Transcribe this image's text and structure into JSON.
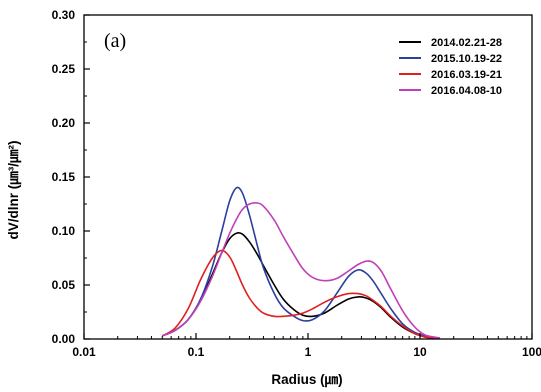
{
  "chart_data": {
    "type": "line",
    "panel_label": "(a)",
    "xlabel": "Radius (㎛)",
    "ylabel": "dV/dlnr (㎛³/㎛²)",
    "x_scale": "log",
    "xlim": [
      0.01,
      100
    ],
    "ylim": [
      0,
      0.3
    ],
    "x_ticks": [
      0.01,
      0.1,
      1,
      10,
      100
    ],
    "x_tick_labels": [
      "0.01",
      "0.1",
      "1",
      "10",
      "100"
    ],
    "y_ticks": [
      0,
      0.05,
      0.1,
      0.15,
      0.2,
      0.25,
      0.3
    ],
    "y_tick_labels": [
      "0.00",
      "0.05",
      "0.10",
      "0.15",
      "0.20",
      "0.25",
      "0.30"
    ],
    "grid": false,
    "legend_position": "top-right",
    "x": [
      0.05,
      0.065,
      0.085,
      0.11,
      0.14,
      0.17,
      0.2,
      0.23,
      0.26,
      0.3,
      0.35,
      0.4,
      0.5,
      0.6,
      0.75,
      0.9,
      1.1,
      1.4,
      1.8,
      2.3,
      2.8,
      3.3,
      3.8,
      4.5,
      5.5,
      7,
      9,
      11,
      13,
      15
    ],
    "series": [
      {
        "name": "2014.02.21-28",
        "color": "#000000",
        "values": [
          0.003,
          0.008,
          0.018,
          0.036,
          0.06,
          0.08,
          0.093,
          0.098,
          0.097,
          0.09,
          0.079,
          0.068,
          0.05,
          0.037,
          0.027,
          0.022,
          0.021,
          0.024,
          0.031,
          0.037,
          0.039,
          0.038,
          0.035,
          0.029,
          0.02,
          0.011,
          0.005,
          0.002,
          0.001,
          0.001
        ]
      },
      {
        "name": "2015.10.19-22",
        "color": "#2b3f9e",
        "values": [
          0.003,
          0.008,
          0.018,
          0.037,
          0.067,
          0.1,
          0.128,
          0.14,
          0.135,
          0.115,
          0.088,
          0.066,
          0.042,
          0.029,
          0.021,
          0.017,
          0.018,
          0.026,
          0.042,
          0.058,
          0.064,
          0.061,
          0.054,
          0.042,
          0.028,
          0.014,
          0.006,
          0.003,
          0.001,
          0.001
        ]
      },
      {
        "name": "2016.03.19-21",
        "color": "#e02020",
        "values": [
          0.003,
          0.01,
          0.028,
          0.055,
          0.075,
          0.082,
          0.076,
          0.063,
          0.05,
          0.038,
          0.029,
          0.024,
          0.021,
          0.021,
          0.022,
          0.024,
          0.028,
          0.034,
          0.039,
          0.042,
          0.042,
          0.04,
          0.036,
          0.03,
          0.021,
          0.012,
          0.005,
          0.002,
          0.001,
          0.001
        ]
      },
      {
        "name": "2016.04.08-10",
        "color": "#c040b8",
        "values": [
          0.003,
          0.008,
          0.018,
          0.035,
          0.058,
          0.08,
          0.098,
          0.111,
          0.12,
          0.125,
          0.126,
          0.123,
          0.11,
          0.095,
          0.078,
          0.065,
          0.057,
          0.054,
          0.056,
          0.063,
          0.069,
          0.072,
          0.071,
          0.063,
          0.046,
          0.026,
          0.011,
          0.004,
          0.002,
          0.001
        ]
      }
    ]
  }
}
